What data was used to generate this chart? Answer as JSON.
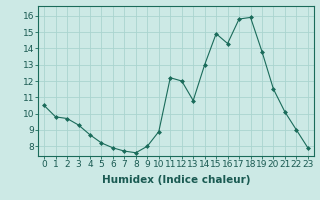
{
  "x": [
    0,
    1,
    2,
    3,
    4,
    5,
    6,
    7,
    8,
    9,
    10,
    11,
    12,
    13,
    14,
    15,
    16,
    17,
    18,
    19,
    20,
    21,
    22,
    23
  ],
  "y": [
    10.5,
    9.8,
    9.7,
    9.3,
    8.7,
    8.2,
    7.9,
    7.7,
    7.6,
    8.0,
    8.9,
    12.2,
    12.0,
    10.8,
    13.0,
    14.9,
    14.3,
    15.8,
    15.9,
    13.8,
    11.5,
    10.1,
    9.0,
    7.9
  ],
  "line_color": "#1a6b5a",
  "marker": "D",
  "marker_size": 2.0,
  "bg_color": "#cce9e5",
  "grid_color": "#aad4cf",
  "xlabel": "Humidex (Indice chaleur)",
  "xlabel_fontsize": 7.5,
  "tick_fontsize": 6.5,
  "ylim": [
    7.4,
    16.6
  ],
  "xlim": [
    -0.5,
    23.5
  ],
  "yticks": [
    8,
    9,
    10,
    11,
    12,
    13,
    14,
    15,
    16
  ],
  "xticks": [
    0,
    1,
    2,
    3,
    4,
    5,
    6,
    7,
    8,
    9,
    10,
    11,
    12,
    13,
    14,
    15,
    16,
    17,
    18,
    19,
    20,
    21,
    22,
    23
  ],
  "xtick_labels": [
    "0",
    "1",
    "2",
    "3",
    "4",
    "5",
    "6",
    "7",
    "8",
    "9",
    "10",
    "11",
    "12",
    "13",
    "14",
    "15",
    "16",
    "17",
    "18",
    "19",
    "20",
    "21",
    "22",
    "23"
  ]
}
